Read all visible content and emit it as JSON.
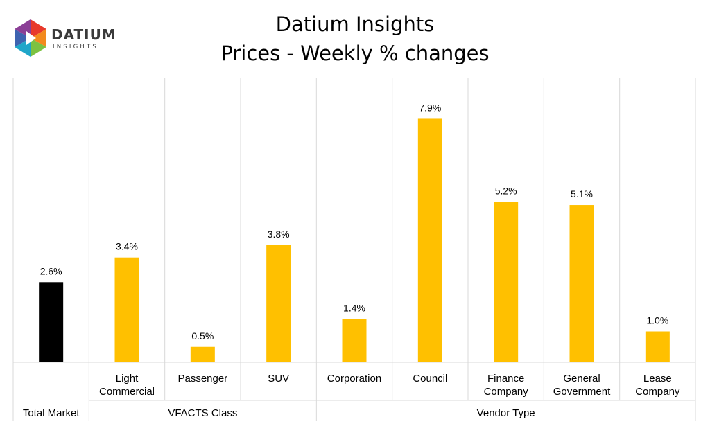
{
  "logo": {
    "text": "DATIUM",
    "subtext": "INSIGHTS"
  },
  "chart_data": {
    "type": "bar",
    "title": "Datium Insights",
    "subtitle": "Prices - Weekly % changes",
    "categories": [
      [
        "Total",
        "Market"
      ],
      [
        "Light",
        "Commercial"
      ],
      [
        "Passenger"
      ],
      [
        "SUV"
      ],
      [
        "Corporation"
      ],
      [
        "Council"
      ],
      [
        "Finance",
        "Company"
      ],
      [
        "General",
        "Government"
      ],
      [
        "Lease",
        "Company"
      ]
    ],
    "values": [
      2.6,
      3.4,
      0.5,
      3.8,
      1.4,
      7.9,
      5.2,
      5.1,
      1.0
    ],
    "data_labels": [
      "2.6%",
      "3.4%",
      "0.5%",
      "3.8%",
      "1.4%",
      "7.9%",
      "5.2%",
      "5.1%",
      "1.0%"
    ],
    "groups": [
      {
        "label": "Total Market",
        "start": 0,
        "end": 0
      },
      {
        "label": "VFACTS Class",
        "start": 1,
        "end": 3
      },
      {
        "label": "Vendor Type",
        "start": 4,
        "end": 8
      }
    ],
    "colors": [
      "#000000",
      "#ffc000",
      "#ffc000",
      "#ffc000",
      "#ffc000",
      "#ffc000",
      "#ffc000",
      "#ffc000",
      "#ffc000"
    ],
    "gridline_color": "#d9d9d9",
    "ylim": [
      0,
      9.5
    ],
    "grid": false,
    "legend": "none"
  }
}
